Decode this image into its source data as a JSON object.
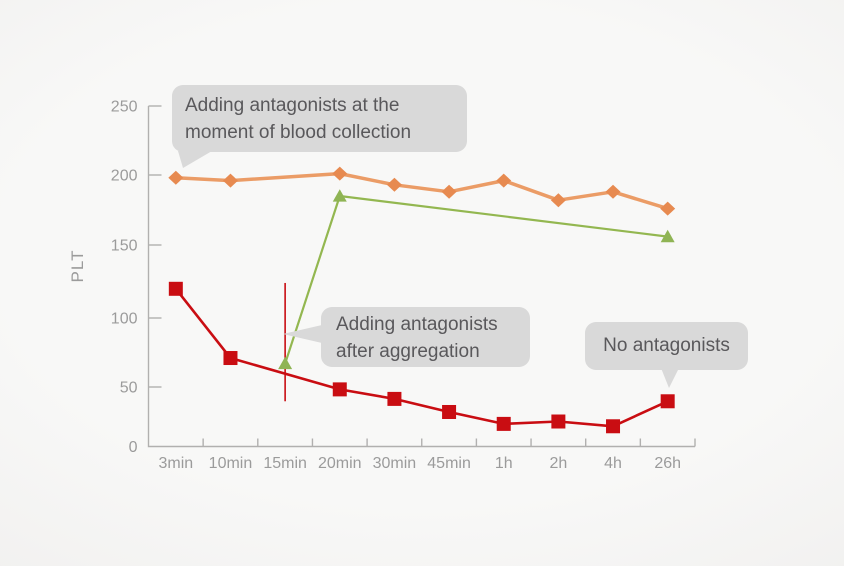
{
  "styles": {
    "background": "#f7f6f5",
    "axis_color": "#b1b0af",
    "tick_label_color": "#9b9b9b",
    "callout_bg": "#d9d9d9",
    "callout_text_color": "#59585b"
  },
  "chart_data": {
    "type": "line",
    "title": "",
    "xlabel": "",
    "ylabel": "PLT",
    "x_tick_labels": [
      "3min",
      "10min",
      "15min",
      "20min",
      "30min",
      "45min",
      "1h",
      "2h",
      "4h",
      "26h"
    ],
    "y_tick_labels": [
      "0",
      "50",
      "100",
      "150",
      "200",
      "250"
    ],
    "ylim": [
      0,
      250
    ],
    "grid": false,
    "legend_position": "none (series labeled by callout bubbles)",
    "series": [
      {
        "name": "Adding antagonists at the moment of blood collection",
        "marker": "diamond",
        "line_color": "#eb9c66",
        "marker_color": "#e78a50",
        "points": [
          [
            "3min",
            198
          ],
          [
            "10min",
            196
          ],
          [
            "20min",
            201
          ],
          [
            "30min",
            193
          ],
          [
            "45min",
            188
          ],
          [
            "1h",
            196
          ],
          [
            "2h",
            182
          ],
          [
            "4h",
            188
          ],
          [
            "26h",
            176
          ]
        ]
      },
      {
        "name": "No antagonists",
        "marker": "square",
        "line_color": "#c90d12",
        "marker_color": "#c90d12",
        "points": [
          [
            "3min",
            120
          ],
          [
            "10min",
            71
          ],
          [
            "20min",
            48
          ],
          [
            "30min",
            40
          ],
          [
            "45min",
            29
          ],
          [
            "1h",
            19
          ],
          [
            "2h",
            21
          ],
          [
            "4h",
            17
          ],
          [
            "26h",
            38
          ]
        ]
      },
      {
        "name": "Adding antagonists after aggregation",
        "marker": "triangle",
        "line_color": "#93b750",
        "marker_color": "#8fb454",
        "points": [
          [
            "15min",
            67
          ],
          [
            "20min",
            185
          ],
          [
            "26h",
            156
          ]
        ]
      }
    ],
    "annotation_vline": {
      "x": "15min",
      "y_from": 38,
      "y_to": 124,
      "color": "#c90d12"
    }
  },
  "callouts": [
    {
      "id": "blood-collection",
      "lines": [
        "Adding antagonists at the",
        "moment of blood collection"
      ]
    },
    {
      "id": "after-aggregation",
      "lines": [
        "Adding antagonists",
        "after aggregation"
      ]
    },
    {
      "id": "no-antagonists",
      "lines": [
        "No antagonists"
      ]
    }
  ]
}
